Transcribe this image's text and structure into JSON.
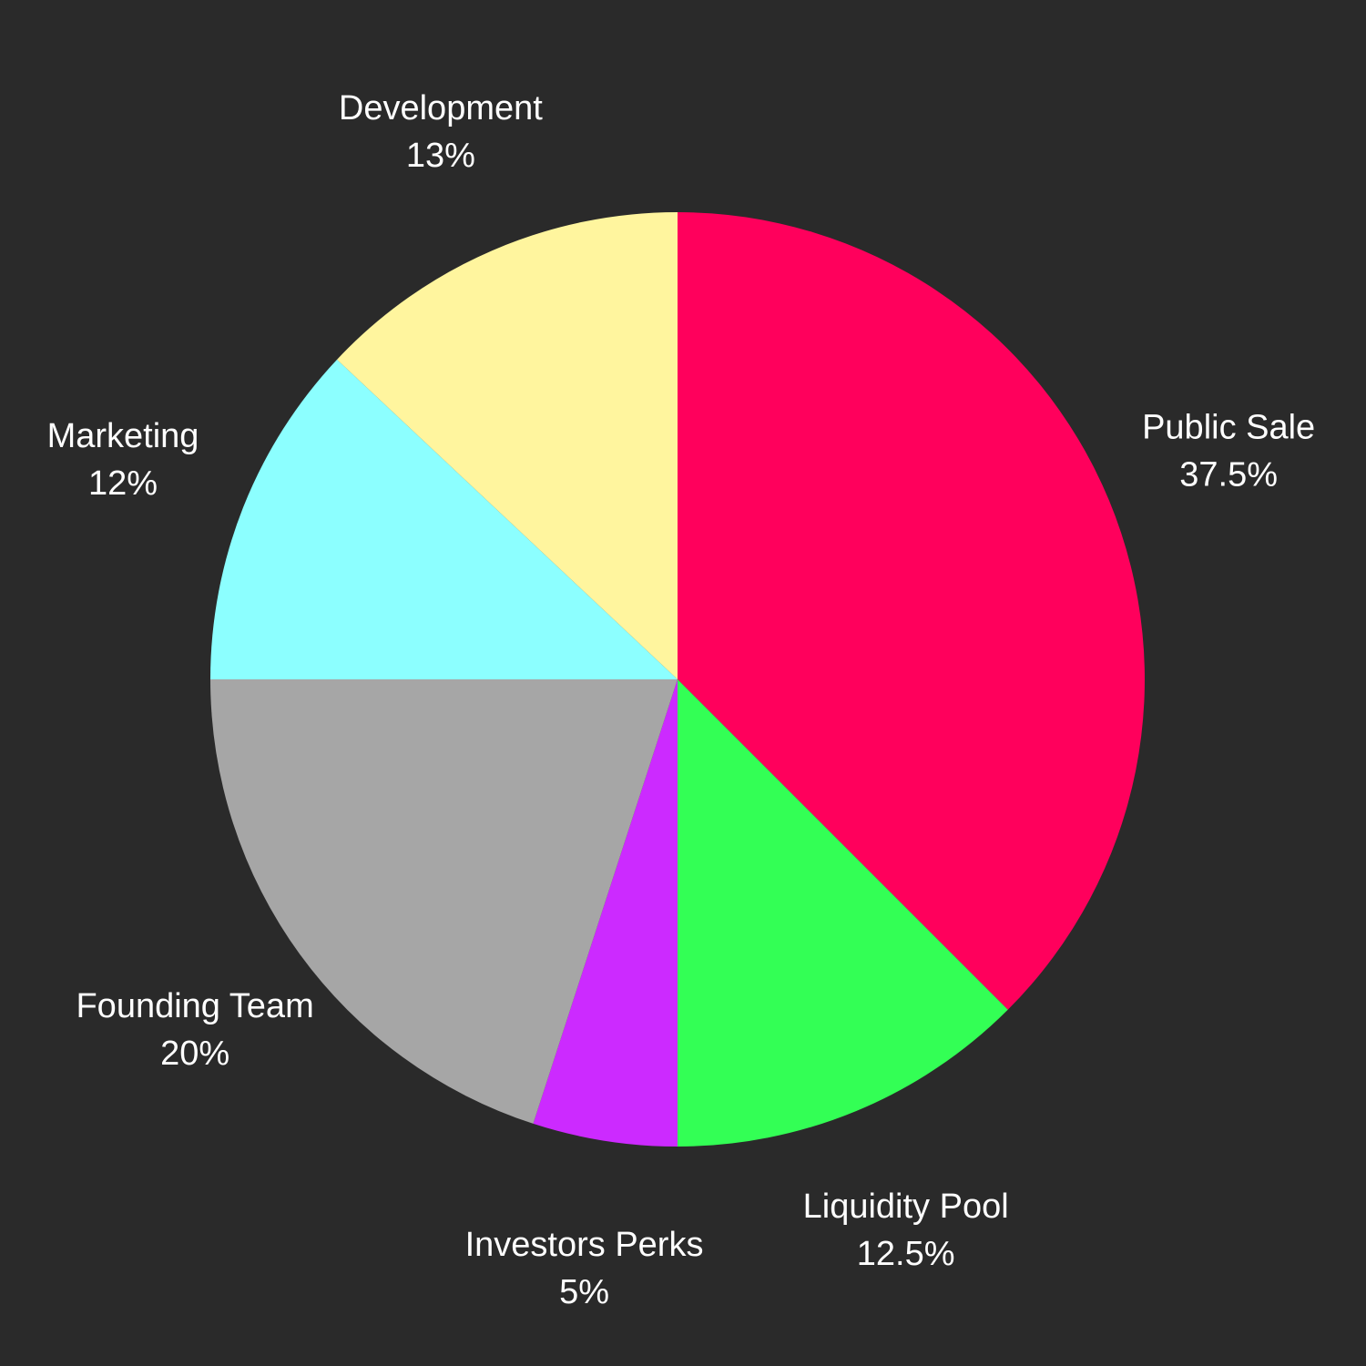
{
  "colors": {
    "background": "#2a2a2a",
    "label_text": "#ffffff"
  },
  "chart_data": {
    "type": "pie",
    "title": "",
    "start_angle_deg": 0,
    "direction": "clockwise",
    "slices": [
      {
        "label": "Public Sale",
        "value": 37.5,
        "value_label": "37.5%",
        "color": "#ff005c"
      },
      {
        "label": "Liquidity Pool",
        "value": 12.5,
        "value_label": "12.5%",
        "color": "#33ff55"
      },
      {
        "label": "Investors Perks",
        "value": 5,
        "value_label": "5%",
        "color": "#cc2aff"
      },
      {
        "label": "Founding Team",
        "value": 20,
        "value_label": "20%",
        "color": "#a6a6a6"
      },
      {
        "label": "Marketing",
        "value": 12,
        "value_label": "12%",
        "color": "#8cffff"
      },
      {
        "label": "Development",
        "value": 13,
        "value_label": "13%",
        "color": "#fff59e"
      }
    ]
  }
}
